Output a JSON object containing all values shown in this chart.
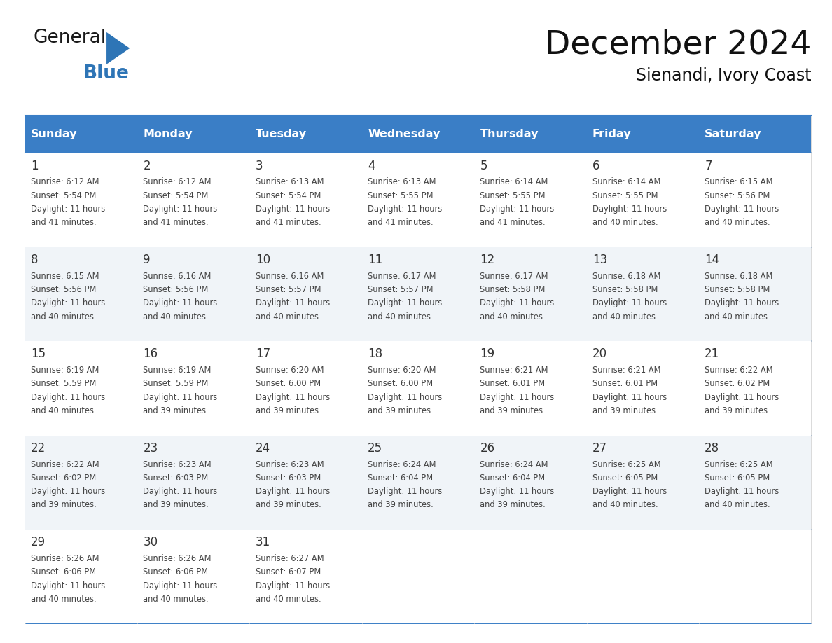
{
  "title": "December 2024",
  "subtitle": "Sienandi, Ivory Coast",
  "header_color": "#3A7EC6",
  "header_text_color": "#FFFFFF",
  "cell_bg_odd": "#FFFFFF",
  "cell_bg_even": "#F0F4F8",
  "cell_border_color": "#3A7EC6",
  "row_line_color": "#3A7EC6",
  "days_of_week": [
    "Sunday",
    "Monday",
    "Tuesday",
    "Wednesday",
    "Thursday",
    "Friday",
    "Saturday"
  ],
  "weeks": [
    [
      {
        "day": 1,
        "sunrise": "6:12 AM",
        "sunset": "5:54 PM",
        "daylight": "11 hours and 41 minutes."
      },
      {
        "day": 2,
        "sunrise": "6:12 AM",
        "sunset": "5:54 PM",
        "daylight": "11 hours and 41 minutes."
      },
      {
        "day": 3,
        "sunrise": "6:13 AM",
        "sunset": "5:54 PM",
        "daylight": "11 hours and 41 minutes."
      },
      {
        "day": 4,
        "sunrise": "6:13 AM",
        "sunset": "5:55 PM",
        "daylight": "11 hours and 41 minutes."
      },
      {
        "day": 5,
        "sunrise": "6:14 AM",
        "sunset": "5:55 PM",
        "daylight": "11 hours and 41 minutes."
      },
      {
        "day": 6,
        "sunrise": "6:14 AM",
        "sunset": "5:55 PM",
        "daylight": "11 hours and 40 minutes."
      },
      {
        "day": 7,
        "sunrise": "6:15 AM",
        "sunset": "5:56 PM",
        "daylight": "11 hours and 40 minutes."
      }
    ],
    [
      {
        "day": 8,
        "sunrise": "6:15 AM",
        "sunset": "5:56 PM",
        "daylight": "11 hours and 40 minutes."
      },
      {
        "day": 9,
        "sunrise": "6:16 AM",
        "sunset": "5:56 PM",
        "daylight": "11 hours and 40 minutes."
      },
      {
        "day": 10,
        "sunrise": "6:16 AM",
        "sunset": "5:57 PM",
        "daylight": "11 hours and 40 minutes."
      },
      {
        "day": 11,
        "sunrise": "6:17 AM",
        "sunset": "5:57 PM",
        "daylight": "11 hours and 40 minutes."
      },
      {
        "day": 12,
        "sunrise": "6:17 AM",
        "sunset": "5:58 PM",
        "daylight": "11 hours and 40 minutes."
      },
      {
        "day": 13,
        "sunrise": "6:18 AM",
        "sunset": "5:58 PM",
        "daylight": "11 hours and 40 minutes."
      },
      {
        "day": 14,
        "sunrise": "6:18 AM",
        "sunset": "5:58 PM",
        "daylight": "11 hours and 40 minutes."
      }
    ],
    [
      {
        "day": 15,
        "sunrise": "6:19 AM",
        "sunset": "5:59 PM",
        "daylight": "11 hours and 40 minutes."
      },
      {
        "day": 16,
        "sunrise": "6:19 AM",
        "sunset": "5:59 PM",
        "daylight": "11 hours and 39 minutes."
      },
      {
        "day": 17,
        "sunrise": "6:20 AM",
        "sunset": "6:00 PM",
        "daylight": "11 hours and 39 minutes."
      },
      {
        "day": 18,
        "sunrise": "6:20 AM",
        "sunset": "6:00 PM",
        "daylight": "11 hours and 39 minutes."
      },
      {
        "day": 19,
        "sunrise": "6:21 AM",
        "sunset": "6:01 PM",
        "daylight": "11 hours and 39 minutes."
      },
      {
        "day": 20,
        "sunrise": "6:21 AM",
        "sunset": "6:01 PM",
        "daylight": "11 hours and 39 minutes."
      },
      {
        "day": 21,
        "sunrise": "6:22 AM",
        "sunset": "6:02 PM",
        "daylight": "11 hours and 39 minutes."
      }
    ],
    [
      {
        "day": 22,
        "sunrise": "6:22 AM",
        "sunset": "6:02 PM",
        "daylight": "11 hours and 39 minutes."
      },
      {
        "day": 23,
        "sunrise": "6:23 AM",
        "sunset": "6:03 PM",
        "daylight": "11 hours and 39 minutes."
      },
      {
        "day": 24,
        "sunrise": "6:23 AM",
        "sunset": "6:03 PM",
        "daylight": "11 hours and 39 minutes."
      },
      {
        "day": 25,
        "sunrise": "6:24 AM",
        "sunset": "6:04 PM",
        "daylight": "11 hours and 39 minutes."
      },
      {
        "day": 26,
        "sunrise": "6:24 AM",
        "sunset": "6:04 PM",
        "daylight": "11 hours and 39 minutes."
      },
      {
        "day": 27,
        "sunrise": "6:25 AM",
        "sunset": "6:05 PM",
        "daylight": "11 hours and 40 minutes."
      },
      {
        "day": 28,
        "sunrise": "6:25 AM",
        "sunset": "6:05 PM",
        "daylight": "11 hours and 40 minutes."
      }
    ],
    [
      {
        "day": 29,
        "sunrise": "6:26 AM",
        "sunset": "6:06 PM",
        "daylight": "11 hours and 40 minutes."
      },
      {
        "day": 30,
        "sunrise": "6:26 AM",
        "sunset": "6:06 PM",
        "daylight": "11 hours and 40 minutes."
      },
      {
        "day": 31,
        "sunrise": "6:27 AM",
        "sunset": "6:07 PM",
        "daylight": "11 hours and 40 minutes."
      },
      null,
      null,
      null,
      null
    ]
  ],
  "bg_color": "#FFFFFF",
  "logo_general_color": "#1A1A1A",
  "logo_blue_color": "#2E75B6",
  "logo_triangle_color": "#2E75B6"
}
